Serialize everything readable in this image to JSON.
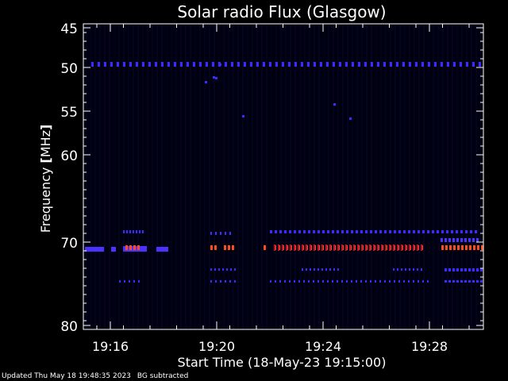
{
  "chart_data": {
    "type": "heatmap",
    "title": "Solar radio Flux (Glasgow)",
    "xlabel": "Start Time (18-May-23 19:15:00)",
    "ylabel_text": "Frequency ",
    "ylabel_unit": "MHz",
    "x_ticks": [
      "19:16",
      "19:20",
      "19:24",
      "19:28"
    ],
    "y_ticks": [
      "45",
      "50",
      "55",
      "60",
      "70",
      "80"
    ],
    "background_color": "#000000",
    "emission_bands": [
      {
        "frequency_mhz": 49.5,
        "intensity": "low",
        "color": "#3a2cff"
      },
      {
        "frequency_mhz": 70.5,
        "intensity": "high",
        "color": "#ff4a1a"
      },
      {
        "frequency_mhz": 70.5,
        "intensity": "medium",
        "color": "#4b32ff"
      },
      {
        "frequency_mhz": 73.5,
        "intensity": "low",
        "color": "#3a2cff"
      },
      {
        "frequency_mhz": 74.0,
        "intensity": "low",
        "color": "#3a2cff"
      }
    ]
  },
  "footer": {
    "updated": "Updated Thu May 18 19:48:35 2023",
    "note": "BG subtracted"
  }
}
